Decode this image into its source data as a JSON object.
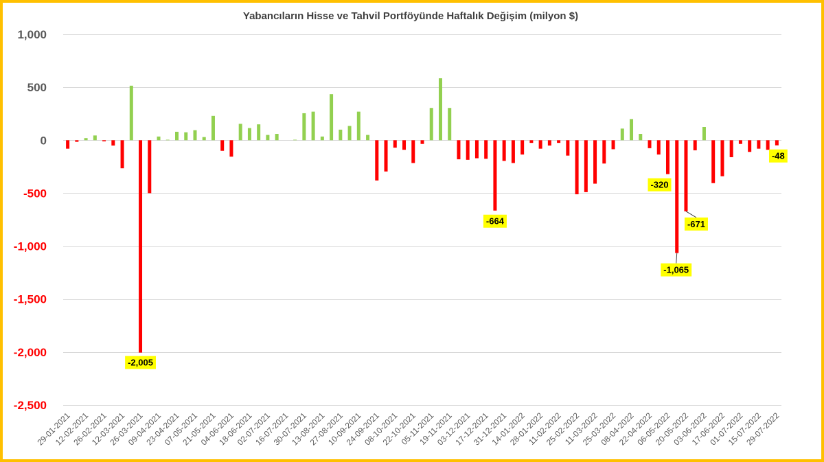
{
  "chart_data": {
    "type": "bar",
    "title": "Yabancıların Hisse ve Tahvil Portföyünde Haftalık Değişim (milyon $)",
    "categories": [
      "29-01-2021",
      "",
      "12-02-2021",
      "",
      "26-02-2021",
      "",
      "12-03-2021",
      "",
      "26-03-2021",
      "",
      "09-04-2021",
      "",
      "23-04-2021",
      "",
      "07-05-2021",
      "",
      "21-05-2021",
      "",
      "04-06-2021",
      "",
      "18-06-2021",
      "",
      "02-07-2021",
      "",
      "16-07-2021",
      "",
      "30-07-2021",
      "",
      "13-08-2021",
      "",
      "27-08-2021",
      "",
      "10-09-2021",
      "",
      "24-09-2021",
      "",
      "08-10-2021",
      "",
      "22-10-2021",
      "",
      "05-11-2021",
      "",
      "19-11-2021",
      "",
      "03-12-2021",
      "",
      "17-12-2021",
      "",
      "31-12-2021",
      "",
      "14-01-2022",
      "",
      "28-01-2022",
      "",
      "11-02-2022",
      "",
      "25-02-2022",
      "",
      "11-03-2022",
      "",
      "25-03-2022",
      "",
      "08-04-2022",
      "",
      "22-04-2022",
      "",
      "06-05-2022",
      "",
      "20-05-2022",
      "",
      "03-06-2022",
      "",
      "17-06-2022",
      "",
      "01-07-2022",
      "",
      "15-07-2022",
      "",
      "29-07-2022"
    ],
    "values": [
      -80,
      -15,
      20,
      45,
      -10,
      -50,
      -265,
      515,
      -2005,
      -500,
      35,
      5,
      80,
      75,
      95,
      30,
      230,
      -100,
      -155,
      155,
      115,
      150,
      50,
      60,
      0,
      5,
      255,
      270,
      35,
      435,
      100,
      135,
      270,
      50,
      -380,
      -295,
      -70,
      -90,
      -215,
      -35,
      305,
      585,
      305,
      -180,
      -185,
      -170,
      -175,
      -664,
      -195,
      -215,
      -135,
      -25,
      -80,
      -50,
      -25,
      -145,
      -510,
      -490,
      -410,
      -220,
      -85,
      110,
      200,
      60,
      -75,
      -135,
      -320,
      -1065,
      -671,
      -95,
      125,
      -405,
      -340,
      -160,
      -35,
      -110,
      -80,
      -90,
      -48
    ],
    "y_axis": {
      "min": -2500,
      "max": 1000,
      "ticks": [
        1000,
        500,
        0,
        -500,
        -1000,
        -1500,
        -2000,
        -2500
      ],
      "tick_labels": [
        "1,000",
        "500",
        "0",
        "-500",
        "-1,000",
        "-1,500",
        "-2,000",
        "-2,500"
      ]
    },
    "grid": true,
    "data_labels": [
      {
        "index": 8,
        "text": "-2,005"
      },
      {
        "index": 47,
        "text": "-664"
      },
      {
        "index": 66,
        "text": "-320"
      },
      {
        "index": 67,
        "text": "-1,065"
      },
      {
        "index": 68,
        "text": "-671"
      },
      {
        "index": 78,
        "text": "-48"
      }
    ],
    "colors": {
      "positive_bar": "#92D050",
      "negative_bar": "#FF0000",
      "axis_text": "#595959",
      "negative_tick_text": "#FF0000",
      "data_label_background": "#FFFF00",
      "frame": "#FFC000"
    }
  }
}
